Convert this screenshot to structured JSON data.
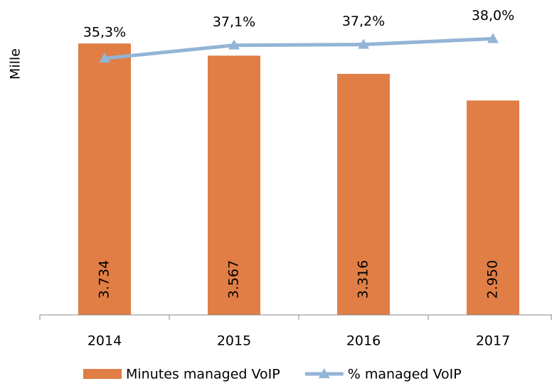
{
  "chart_data": {
    "type": "bar",
    "y_axis_label": "Mille",
    "categories": [
      "2014",
      "2015",
      "2016",
      "2017"
    ],
    "series": [
      {
        "name": "Minutes managed VoIP",
        "type": "bar",
        "color": "#e07e45",
        "values": [
          3734,
          3567,
          3316,
          2950
        ],
        "value_labels": [
          "3.734",
          "3.567",
          "3.316",
          "2.950"
        ]
      },
      {
        "name": "% managed VoIP",
        "type": "line",
        "axis": "y2",
        "color": "#93b4d6",
        "values": [
          35.3,
          37.1,
          37.2,
          38.0
        ],
        "value_labels": [
          "35,3%",
          "37,1%",
          "37,2%",
          "38,0%"
        ]
      }
    ],
    "ylim": [
      0,
      4000
    ],
    "y2lim": [
      0,
      40
    ],
    "legend": "bottom"
  }
}
